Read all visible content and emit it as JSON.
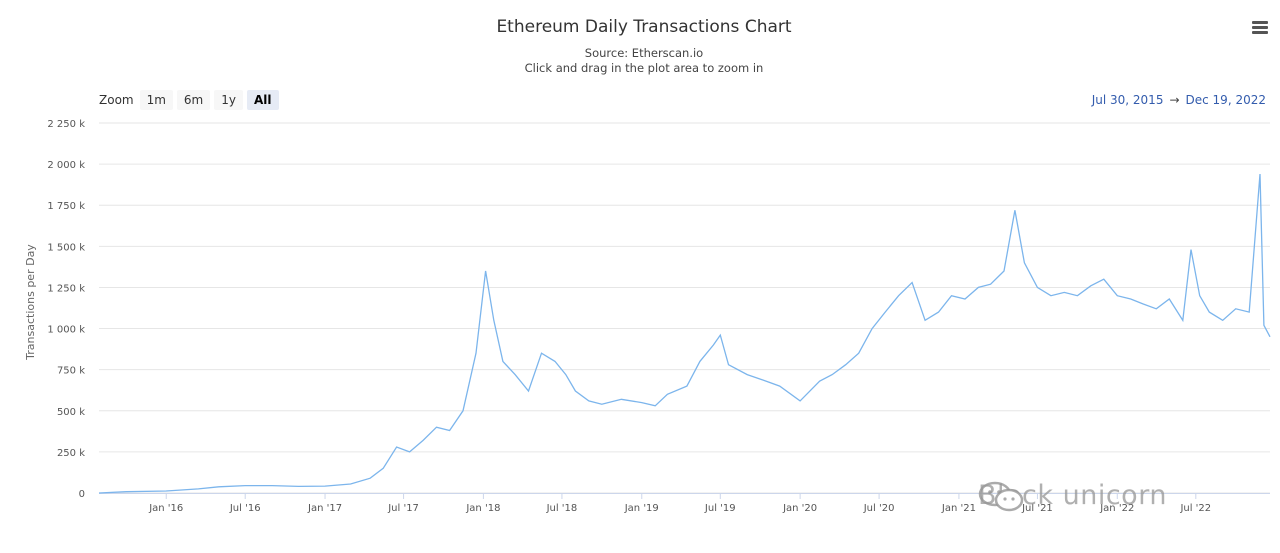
{
  "chart_data": {
    "type": "line",
    "title": "Ethereum Daily Transactions Chart",
    "subtitle_lines": [
      "Source: Etherscan.io",
      "Click and drag in the plot area to zoom in"
    ],
    "ylabel": "Transactions per Day",
    "xlabel": "",
    "ylim": [
      0,
      2250000
    ],
    "y_ticks": [
      {
        "value": 0,
        "label": "0"
      },
      {
        "value": 250000,
        "label": "250 k"
      },
      {
        "value": 500000,
        "label": "500 k"
      },
      {
        "value": 750000,
        "label": "750 k"
      },
      {
        "value": 1000000,
        "label": "1 000 k"
      },
      {
        "value": 1250000,
        "label": "1 250 k"
      },
      {
        "value": 1500000,
        "label": "1 500 k"
      },
      {
        "value": 1750000,
        "label": "1 750 k"
      },
      {
        "value": 2000000,
        "label": "2 000 k"
      },
      {
        "value": 2250000,
        "label": "2 250 k"
      }
    ],
    "x_range": [
      "2015-07-30",
      "2022-12-19"
    ],
    "x_ticks": [
      {
        "date": "2016-01-01",
        "label": "Jan '16"
      },
      {
        "date": "2016-07-01",
        "label": "Jul '16"
      },
      {
        "date": "2017-01-01",
        "label": "Jan '17"
      },
      {
        "date": "2017-07-01",
        "label": "Jul '17"
      },
      {
        "date": "2018-01-01",
        "label": "Jan '18"
      },
      {
        "date": "2018-07-01",
        "label": "Jul '18"
      },
      {
        "date": "2019-01-01",
        "label": "Jan '19"
      },
      {
        "date": "2019-07-01",
        "label": "Jul '19"
      },
      {
        "date": "2020-01-01",
        "label": "Jan '20"
      },
      {
        "date": "2020-07-01",
        "label": "Jul '20"
      },
      {
        "date": "2021-01-01",
        "label": "Jan '21"
      },
      {
        "date": "2021-07-01",
        "label": "Jul '21"
      },
      {
        "date": "2022-01-01",
        "label": "Jan '22"
      },
      {
        "date": "2022-07-01",
        "label": "Jul '22"
      }
    ],
    "grid": true,
    "series": [
      {
        "color": "#7cb5ec",
        "points": [
          [
            "2015-07-30",
            0
          ],
          [
            "2015-10-01",
            8000
          ],
          [
            "2016-01-01",
            12000
          ],
          [
            "2016-03-15",
            25000
          ],
          [
            "2016-05-01",
            38000
          ],
          [
            "2016-07-01",
            45000
          ],
          [
            "2016-09-01",
            45000
          ],
          [
            "2016-11-01",
            40000
          ],
          [
            "2017-01-01",
            42000
          ],
          [
            "2017-03-01",
            55000
          ],
          [
            "2017-04-15",
            90000
          ],
          [
            "2017-05-15",
            150000
          ],
          [
            "2017-06-15",
            280000
          ],
          [
            "2017-07-15",
            250000
          ],
          [
            "2017-08-15",
            320000
          ],
          [
            "2017-09-15",
            400000
          ],
          [
            "2017-10-15",
            380000
          ],
          [
            "2017-11-15",
            500000
          ],
          [
            "2017-12-15",
            850000
          ],
          [
            "2018-01-06",
            1350000
          ],
          [
            "2018-01-25",
            1050000
          ],
          [
            "2018-02-15",
            800000
          ],
          [
            "2018-03-15",
            720000
          ],
          [
            "2018-04-15",
            620000
          ],
          [
            "2018-05-15",
            850000
          ],
          [
            "2018-06-15",
            800000
          ],
          [
            "2018-07-10",
            720000
          ],
          [
            "2018-08-01",
            620000
          ],
          [
            "2018-09-01",
            560000
          ],
          [
            "2018-10-01",
            540000
          ],
          [
            "2018-11-15",
            570000
          ],
          [
            "2019-01-01",
            550000
          ],
          [
            "2019-02-01",
            530000
          ],
          [
            "2019-03-01",
            600000
          ],
          [
            "2019-04-15",
            650000
          ],
          [
            "2019-05-15",
            800000
          ],
          [
            "2019-06-15",
            900000
          ],
          [
            "2019-07-01",
            960000
          ],
          [
            "2019-07-20",
            780000
          ],
          [
            "2019-09-01",
            720000
          ],
          [
            "2019-10-15",
            680000
          ],
          [
            "2019-11-15",
            650000
          ],
          [
            "2020-01-01",
            560000
          ],
          [
            "2020-02-15",
            680000
          ],
          [
            "2020-03-15",
            720000
          ],
          [
            "2020-04-15",
            780000
          ],
          [
            "2020-05-15",
            850000
          ],
          [
            "2020-06-15",
            1000000
          ],
          [
            "2020-07-15",
            1100000
          ],
          [
            "2020-08-15",
            1200000
          ],
          [
            "2020-09-15",
            1280000
          ],
          [
            "2020-10-15",
            1050000
          ],
          [
            "2020-11-15",
            1100000
          ],
          [
            "2020-12-15",
            1200000
          ],
          [
            "2021-01-15",
            1180000
          ],
          [
            "2021-02-15",
            1250000
          ],
          [
            "2021-03-15",
            1270000
          ],
          [
            "2021-04-15",
            1350000
          ],
          [
            "2021-05-10",
            1720000
          ],
          [
            "2021-06-01",
            1400000
          ],
          [
            "2021-07-01",
            1250000
          ],
          [
            "2021-08-01",
            1200000
          ],
          [
            "2021-09-01",
            1220000
          ],
          [
            "2021-10-01",
            1200000
          ],
          [
            "2021-11-01",
            1260000
          ],
          [
            "2021-12-01",
            1300000
          ],
          [
            "2022-01-01",
            1200000
          ],
          [
            "2022-02-01",
            1180000
          ],
          [
            "2022-03-01",
            1150000
          ],
          [
            "2022-04-01",
            1120000
          ],
          [
            "2022-05-01",
            1180000
          ],
          [
            "2022-06-01",
            1050000
          ],
          [
            "2022-06-20",
            1480000
          ],
          [
            "2022-07-10",
            1200000
          ],
          [
            "2022-08-01",
            1100000
          ],
          [
            "2022-09-01",
            1050000
          ],
          [
            "2022-10-01",
            1120000
          ],
          [
            "2022-11-01",
            1100000
          ],
          [
            "2022-11-26",
            1940000
          ],
          [
            "2022-12-05",
            1020000
          ],
          [
            "2022-12-19",
            950000
          ]
        ]
      }
    ]
  },
  "zoom": {
    "label": "Zoom",
    "buttons": [
      "1m",
      "6m",
      "1y",
      "All"
    ],
    "active": "All"
  },
  "range_selector": {
    "from": "Jul 30, 2015",
    "arrow": "→",
    "to": "Dec 19, 2022"
  },
  "watermark": {
    "text": "Block unicorn"
  },
  "colors": {
    "line": "#7cb5ec",
    "grid": "#e6e6e6",
    "axis": "#ccd6eb",
    "range_text": "#335cad"
  },
  "icons": {
    "menu": "hamburger-menu-icon"
  }
}
